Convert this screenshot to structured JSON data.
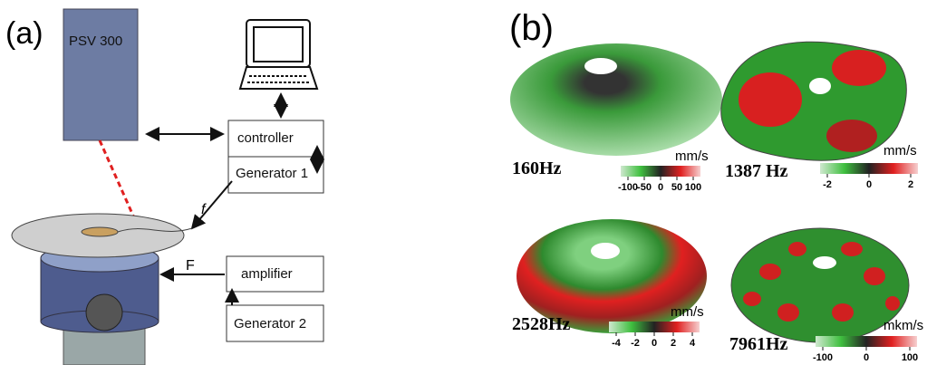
{
  "panel_a": {
    "label": "(a)",
    "vibrometer": "PSV 300",
    "controller": "controller",
    "generator_1": "Generator 1",
    "amplifier": "amplifier",
    "generator_2": "Generator 2",
    "signal_f": "f",
    "force": "F"
  },
  "panel_b": {
    "label": "(b)",
    "plots": [
      {
        "frequency": "160Hz",
        "unit": "mm/s",
        "ticks": [
          "-100",
          "-50",
          "0",
          "50",
          "100"
        ]
      },
      {
        "frequency": "1387 Hz",
        "unit": "mm/s",
        "ticks": [
          "-2",
          "0",
          "2"
        ]
      },
      {
        "frequency": "2528Hz",
        "unit": "mm/s",
        "ticks": [
          "-4",
          "-2",
          "0",
          "2",
          "4"
        ]
      },
      {
        "frequency": "7961Hz",
        "unit": "mkm/s",
        "ticks": [
          "-100",
          "0",
          "100"
        ]
      }
    ]
  }
}
